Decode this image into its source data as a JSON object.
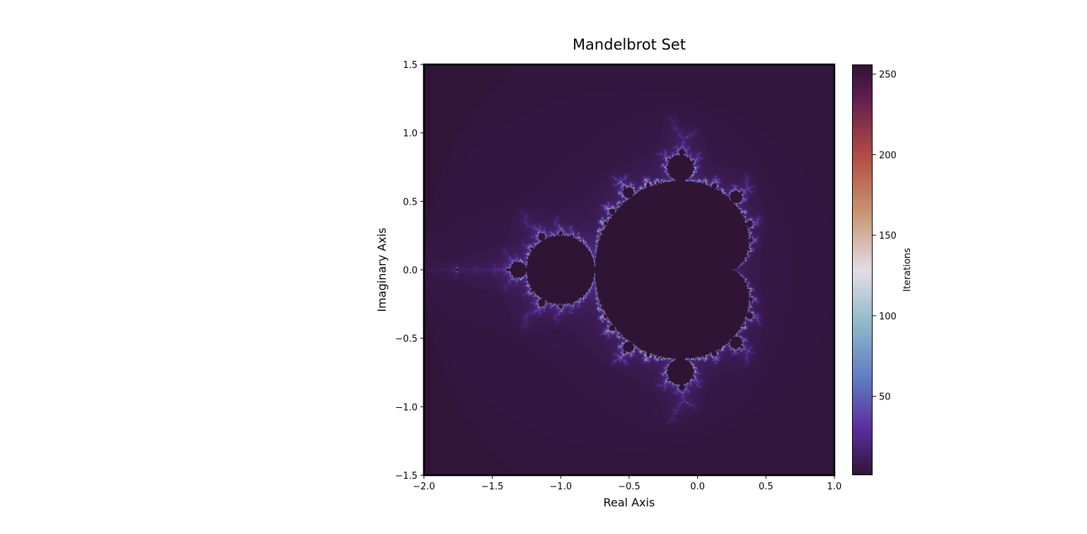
{
  "chart_data": {
    "type": "heatmap",
    "title": "Mandelbrot Set",
    "xlabel": "Real Axis",
    "ylabel": "Imaginary Axis",
    "xlim": [
      -2.0,
      1.0
    ],
    "ylim": [
      -1.5,
      1.5
    ],
    "x_ticks": [
      -2.0,
      -1.5,
      -1.0,
      -0.5,
      0.0,
      0.5,
      1.0
    ],
    "x_tick_labels": [
      "−2.0",
      "−1.5",
      "−1.0",
      "−0.5",
      "0.0",
      "0.5",
      "1.0"
    ],
    "y_ticks": [
      -1.5,
      -1.0,
      -0.5,
      0.0,
      0.5,
      1.0,
      1.5
    ],
    "y_tick_labels": [
      "−1.5",
      "−1.0",
      "−0.5",
      "0.0",
      "0.5",
      "1.0",
      "1.5"
    ],
    "max_iterations": 256,
    "escape_radius": 2,
    "colormap": "twilight_shifted",
    "colormap_stops": [
      {
        "value": 0,
        "color": "#2f1436"
      },
      {
        "value": 30,
        "color": "#5b2e9e"
      },
      {
        "value": 60,
        "color": "#5f7ac0"
      },
      {
        "value": 95,
        "color": "#8fb9ca"
      },
      {
        "value": 128,
        "color": "#e3dde6"
      },
      {
        "value": 165,
        "color": "#c8946f"
      },
      {
        "value": 200,
        "color": "#b24b44"
      },
      {
        "value": 235,
        "color": "#611f4f"
      },
      {
        "value": 256,
        "color": "#2f1436"
      }
    ],
    "colorbar": {
      "label": "Iterations",
      "ticks": [
        50,
        100,
        150,
        200,
        250
      ],
      "tick_labels": [
        "50",
        "100",
        "150",
        "200",
        "250"
      ],
      "range": [
        1,
        256
      ]
    },
    "grid": false,
    "legend": "none"
  }
}
